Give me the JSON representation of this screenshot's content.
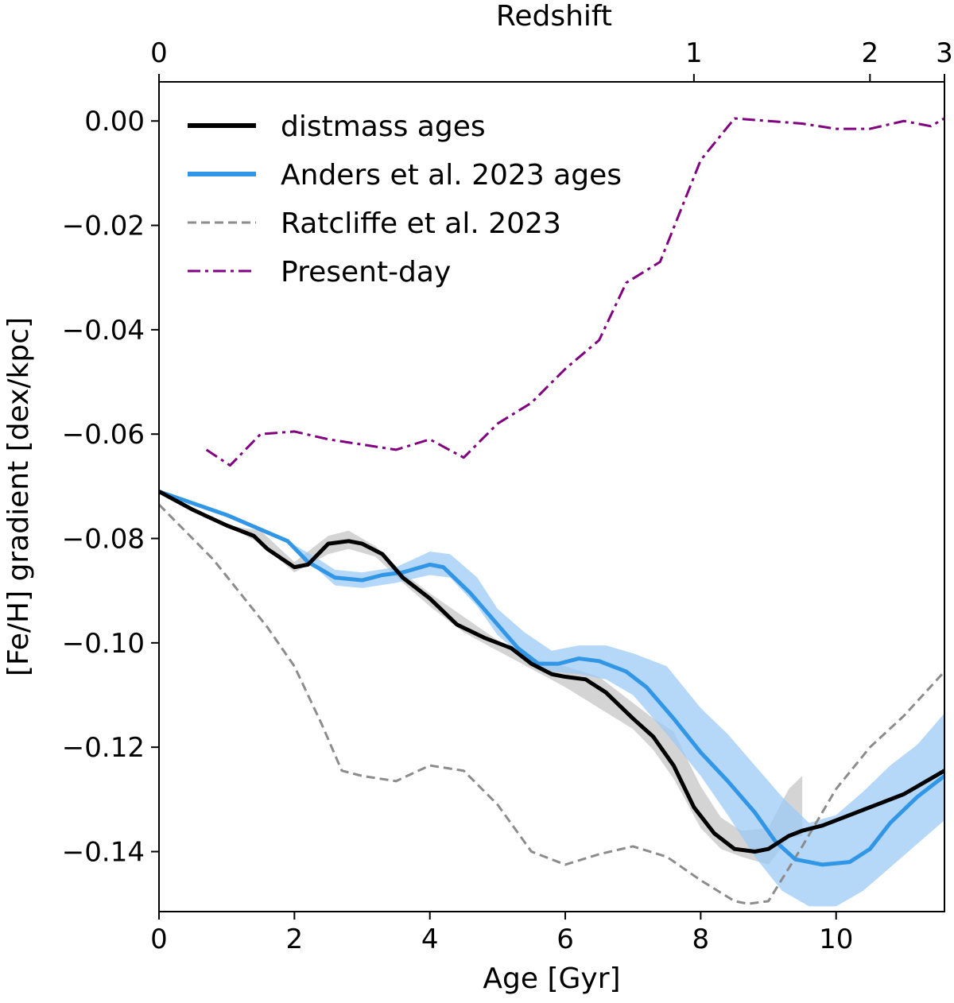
{
  "chart_data": {
    "type": "line",
    "xlabel": "Age [Gyr]",
    "ylabel": "[Fe/H] gradient [dex/kpc]",
    "top_xlabel": "Redshift",
    "xlim": [
      0,
      11.6
    ],
    "ylim": [
      -0.1515,
      0.0075
    ],
    "x_ticks": [
      0,
      2,
      4,
      6,
      8,
      10
    ],
    "x_tick_labels": [
      "0",
      "2",
      "4",
      "6",
      "8",
      "10"
    ],
    "y_ticks": [
      0.0,
      -0.02,
      -0.04,
      -0.06,
      -0.08,
      -0.1,
      -0.12,
      -0.14
    ],
    "y_tick_labels": [
      "0.00",
      "−0.02",
      "−0.04",
      "−0.06",
      "−0.08",
      "−0.10",
      "−0.12",
      "−0.14"
    ],
    "top_ticks": [
      {
        "age": 0.0,
        "label": "0"
      },
      {
        "age": 7.9,
        "label": "1"
      },
      {
        "age": 10.5,
        "label": "2"
      },
      {
        "age": 11.6,
        "label": "3"
      }
    ],
    "legend_location": "upper-left",
    "series": [
      {
        "name": "distmass ages",
        "color": "#000000",
        "style": "solid",
        "x": [
          0.0,
          0.5,
          1.0,
          1.4,
          1.6,
          2.0,
          2.2,
          2.5,
          2.8,
          3.0,
          3.3,
          3.6,
          4.0,
          4.4,
          4.8,
          5.2,
          5.5,
          5.8,
          6.0,
          6.3,
          6.6,
          7.0,
          7.3,
          7.6,
          7.9,
          8.2,
          8.5,
          8.8,
          9.0,
          9.3,
          9.5,
          9.8,
          10.2,
          10.6,
          11.0,
          11.6
        ],
        "y": [
          -0.071,
          -0.0745,
          -0.0775,
          -0.0795,
          -0.082,
          -0.0855,
          -0.085,
          -0.081,
          -0.0805,
          -0.081,
          -0.083,
          -0.0875,
          -0.0915,
          -0.0965,
          -0.099,
          -0.101,
          -0.104,
          -0.106,
          -0.1065,
          -0.107,
          -0.1095,
          -0.1145,
          -0.118,
          -0.1235,
          -0.1315,
          -0.1365,
          -0.1395,
          -0.14,
          -0.1395,
          -0.137,
          -0.136,
          -0.135,
          -0.133,
          -0.131,
          -0.129,
          -0.1245
        ],
        "band_x": [
          0.0,
          1.0,
          1.5,
          2.0,
          2.5,
          2.8,
          3.2,
          3.6,
          4.0,
          4.5,
          5.0,
          5.5,
          6.0,
          6.5,
          7.0,
          7.3,
          7.6,
          8.0,
          8.3,
          8.6,
          9.0,
          9.3,
          9.5
        ],
        "band_lo": [
          -0.071,
          -0.0775,
          -0.081,
          -0.0865,
          -0.083,
          -0.082,
          -0.0835,
          -0.0885,
          -0.093,
          -0.098,
          -0.1015,
          -0.105,
          -0.1085,
          -0.1125,
          -0.1165,
          -0.1205,
          -0.126,
          -0.1355,
          -0.1395,
          -0.141,
          -0.1425,
          -0.1375,
          -0.137
        ],
        "band_hi": [
          -0.071,
          -0.0775,
          -0.0785,
          -0.0845,
          -0.0795,
          -0.0785,
          -0.0815,
          -0.0865,
          -0.0905,
          -0.095,
          -0.0995,
          -0.103,
          -0.1045,
          -0.1065,
          -0.1115,
          -0.1145,
          -0.117,
          -0.1275,
          -0.1335,
          -0.136,
          -0.1355,
          -0.128,
          -0.1255
        ]
      },
      {
        "name": "Anders et al. 2023 ages",
        "color": "#3296e6",
        "band_color": "#9ccaf5",
        "style": "solid",
        "x": [
          0.0,
          1.0,
          1.9,
          2.2,
          2.6,
          3.0,
          3.3,
          3.6,
          4.0,
          4.2,
          4.6,
          5.0,
          5.3,
          5.6,
          5.9,
          6.2,
          6.5,
          6.9,
          7.2,
          7.6,
          8.0,
          8.4,
          8.8,
          9.1,
          9.4,
          9.8,
          10.2,
          10.5,
          10.8,
          11.2,
          11.6
        ],
        "y": [
          -0.071,
          -0.0755,
          -0.0805,
          -0.0845,
          -0.0875,
          -0.088,
          -0.087,
          -0.0865,
          -0.085,
          -0.0855,
          -0.0905,
          -0.0965,
          -0.101,
          -0.104,
          -0.104,
          -0.103,
          -0.1035,
          -0.1055,
          -0.1085,
          -0.1145,
          -0.121,
          -0.1265,
          -0.1325,
          -0.138,
          -0.1415,
          -0.1425,
          -0.142,
          -0.1395,
          -0.1345,
          -0.1295,
          -0.1255
        ],
        "band_x": [
          0.0,
          1.0,
          1.9,
          2.3,
          2.6,
          3.0,
          3.5,
          4.0,
          4.3,
          4.7,
          5.0,
          5.4,
          5.8,
          6.2,
          6.6,
          7.0,
          7.5,
          8.0,
          8.4,
          8.8,
          9.2,
          9.6,
          10.0,
          10.4,
          10.8,
          11.2,
          11.6
        ],
        "band_lo": [
          -0.071,
          -0.0755,
          -0.0805,
          -0.0855,
          -0.089,
          -0.0895,
          -0.0885,
          -0.087,
          -0.0875,
          -0.093,
          -0.0985,
          -0.103,
          -0.1055,
          -0.106,
          -0.107,
          -0.11,
          -0.1175,
          -0.1255,
          -0.133,
          -0.141,
          -0.1475,
          -0.1505,
          -0.1505,
          -0.1475,
          -0.143,
          -0.1385,
          -0.134
        ],
        "band_hi": [
          -0.071,
          -0.0755,
          -0.0805,
          -0.0835,
          -0.086,
          -0.0865,
          -0.0855,
          -0.0825,
          -0.083,
          -0.0875,
          -0.0935,
          -0.098,
          -0.1015,
          -0.1005,
          -0.1005,
          -0.102,
          -0.1045,
          -0.1125,
          -0.1175,
          -0.1235,
          -0.1295,
          -0.1345,
          -0.133,
          -0.1285,
          -0.1235,
          -0.1195,
          -0.1135
        ]
      },
      {
        "name": "Ratcliffe et al. 2023",
        "color": "#8c8c8c",
        "style": "dashed",
        "x": [
          0.0,
          0.8,
          1.6,
          2.0,
          2.4,
          2.7,
          3.0,
          3.5,
          4.0,
          4.5,
          5.0,
          5.5,
          6.0,
          6.5,
          7.0,
          7.5,
          8.0,
          8.5,
          8.7,
          9.0,
          9.5,
          10.0,
          10.5,
          11.0,
          11.6
        ],
        "y": [
          -0.0735,
          -0.084,
          -0.097,
          -0.1045,
          -0.1155,
          -0.1245,
          -0.1255,
          -0.1265,
          -0.1235,
          -0.1245,
          -0.131,
          -0.14,
          -0.1425,
          -0.1405,
          -0.139,
          -0.141,
          -0.1455,
          -0.1495,
          -0.15,
          -0.1495,
          -0.139,
          -0.128,
          -0.12,
          -0.114,
          -0.1055
        ]
      },
      {
        "name": "Present-day",
        "color": "#800080",
        "style": "dashdot",
        "x": [
          0.7,
          1.05,
          1.5,
          2.0,
          2.5,
          3.0,
          3.5,
          4.0,
          4.5,
          5.0,
          5.5,
          6.0,
          6.5,
          6.9,
          7.4,
          8.0,
          8.5,
          9.0,
          9.5,
          10.0,
          10.5,
          11.0,
          11.4,
          11.6
        ],
        "y": [
          -0.063,
          -0.066,
          -0.06,
          -0.0595,
          -0.061,
          -0.062,
          -0.063,
          -0.061,
          -0.0645,
          -0.058,
          -0.054,
          -0.0475,
          -0.042,
          -0.031,
          -0.027,
          -0.0075,
          0.0005,
          0.0,
          -0.0005,
          -0.0015,
          -0.0015,
          0.0,
          -0.001,
          0.0005
        ]
      }
    ]
  }
}
